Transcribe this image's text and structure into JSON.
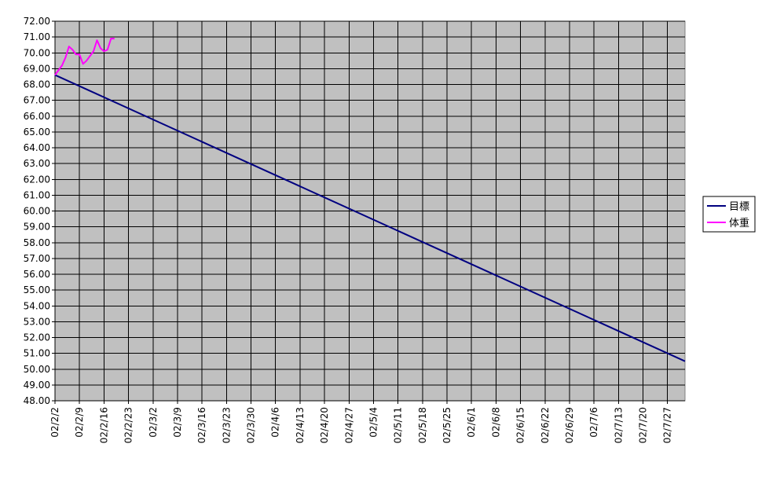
{
  "chart_data": {
    "type": "line",
    "title": "",
    "xlabel": "",
    "ylabel": "",
    "ylim": [
      48,
      72
    ],
    "y_tick_step": 1,
    "grid": true,
    "legend_position": "right",
    "plot_background": "#c0c0c0",
    "grid_color": "#000000",
    "x_start": "2002-02-02",
    "x_end": "2002-08-01",
    "x_tick_labels": [
      "02/2/2",
      "02/2/9",
      "02/2/16",
      "02/2/23",
      "02/3/2",
      "02/3/9",
      "02/3/16",
      "02/3/23",
      "02/3/30",
      "02/4/6",
      "02/4/13",
      "02/4/20",
      "02/4/27",
      "02/5/4",
      "02/5/11",
      "02/5/18",
      "02/5/25",
      "02/6/1",
      "02/6/8",
      "02/6/15",
      "02/6/22",
      "02/6/29",
      "02/7/6",
      "02/7/13",
      "02/7/20",
      "02/7/27"
    ],
    "series": [
      {
        "name": "目標",
        "color": "#000080",
        "points": [
          [
            "2002-02-02",
            68.6
          ],
          [
            "2002-08-01",
            50.5
          ]
        ]
      },
      {
        "name": "体重",
        "color": "#ff00ff",
        "points": [
          [
            "2002-02-02",
            68.6
          ],
          [
            "2002-02-03",
            68.9
          ],
          [
            "2002-02-04",
            69.2
          ],
          [
            "2002-02-05",
            69.7
          ],
          [
            "2002-02-06",
            70.4
          ],
          [
            "2002-02-07",
            70.2
          ],
          [
            "2002-02-08",
            69.9
          ],
          [
            "2002-02-09",
            69.9
          ],
          [
            "2002-02-10",
            69.3
          ],
          [
            "2002-02-11",
            69.5
          ],
          [
            "2002-02-12",
            69.8
          ],
          [
            "2002-02-13",
            70.1
          ],
          [
            "2002-02-14",
            70.8
          ],
          [
            "2002-02-15",
            70.3
          ],
          [
            "2002-02-16",
            70.1
          ],
          [
            "2002-02-17",
            70.2
          ],
          [
            "2002-02-18",
            70.9
          ],
          [
            "2002-02-19",
            70.9
          ]
        ]
      }
    ]
  }
}
